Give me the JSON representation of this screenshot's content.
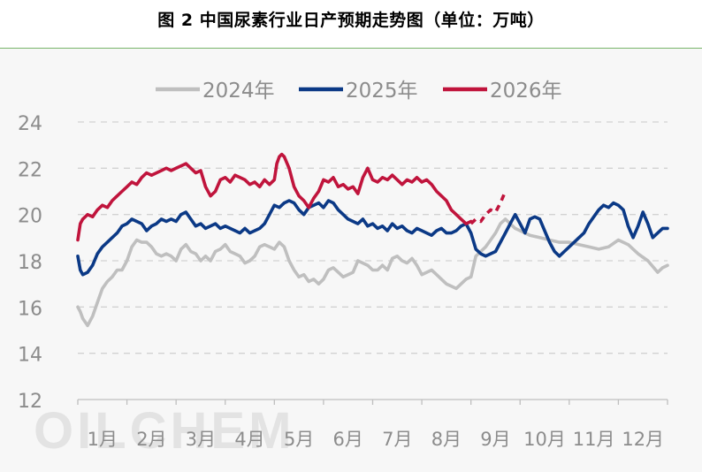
{
  "chart_data": {
    "type": "line",
    "title": "图 2 中国尿素行业日产预期走势图（单位：万吨）",
    "watermark": "OILCHEM",
    "xlabel": "",
    "ylabel": "",
    "ylim": [
      12,
      24
    ],
    "yticks": [
      "24",
      "22",
      "20",
      "18",
      "16",
      "14",
      "12"
    ],
    "xticks": [
      "1月",
      "2月",
      "3月",
      "4月",
      "5月",
      "6月",
      "7月",
      "8月",
      "9月",
      "10月",
      "11月",
      "12月"
    ],
    "grid": true,
    "legend_position": "top",
    "series": [
      {
        "name": "2024年",
        "color": "#bfbfbf",
        "x": [
          1.0,
          1.05,
          1.1,
          1.2,
          1.3,
          1.4,
          1.5,
          1.6,
          1.7,
          1.8,
          1.9,
          2.0,
          2.1,
          2.2,
          2.3,
          2.4,
          2.5,
          2.6,
          2.7,
          2.8,
          2.9,
          3.0,
          3.1,
          3.2,
          3.3,
          3.4,
          3.5,
          3.6,
          3.7,
          3.8,
          3.9,
          4.0,
          4.1,
          4.2,
          4.3,
          4.4,
          4.5,
          4.6,
          4.7,
          4.8,
          4.9,
          5.0,
          5.1,
          5.2,
          5.3,
          5.4,
          5.5,
          5.6,
          5.7,
          5.8,
          5.9,
          6.0,
          6.1,
          6.2,
          6.3,
          6.4,
          6.5,
          6.6,
          6.7,
          6.8,
          6.9,
          7.0,
          7.1,
          7.2,
          7.3,
          7.4,
          7.5,
          7.6,
          7.7,
          7.8,
          7.9,
          8.0,
          8.1,
          8.2,
          8.3,
          8.4,
          8.5,
          8.6,
          8.7,
          8.8,
          8.9,
          9.0,
          9.1,
          9.2,
          9.3,
          9.4,
          9.5,
          9.6,
          9.7,
          9.8,
          9.9,
          10.0,
          10.2,
          10.4,
          10.6,
          10.8,
          11.0,
          11.2,
          11.4,
          11.6,
          11.8,
          12.0,
          12.2,
          12.4,
          12.6,
          12.8,
          12.9,
          13.0
        ],
        "values": [
          16.0,
          15.8,
          15.5,
          15.2,
          15.6,
          16.2,
          16.8,
          17.1,
          17.3,
          17.6,
          17.6,
          18.0,
          18.6,
          18.9,
          18.8,
          18.8,
          18.6,
          18.3,
          18.2,
          18.3,
          18.2,
          18.0,
          18.5,
          18.7,
          18.4,
          18.3,
          18.0,
          18.2,
          18.0,
          18.4,
          18.5,
          18.7,
          18.4,
          18.3,
          18.2,
          17.9,
          18.0,
          18.2,
          18.6,
          18.7,
          18.6,
          18.5,
          18.8,
          18.6,
          18.0,
          17.6,
          17.3,
          17.4,
          17.1,
          17.2,
          17.0,
          17.2,
          17.6,
          17.7,
          17.5,
          17.3,
          17.4,
          17.5,
          18.0,
          17.9,
          17.8,
          17.6,
          17.6,
          17.8,
          17.6,
          18.1,
          18.2,
          18.0,
          17.9,
          18.1,
          17.8,
          17.4,
          17.5,
          17.6,
          17.4,
          17.2,
          17.0,
          16.9,
          16.8,
          17.0,
          17.2,
          17.3,
          18.2,
          18.4,
          18.6,
          18.9,
          19.2,
          19.6,
          19.8,
          19.6,
          19.4,
          19.3,
          19.1,
          19.0,
          18.9,
          18.8,
          18.8,
          18.7,
          18.6,
          18.5,
          18.6,
          18.9,
          18.7,
          18.3,
          18.0,
          17.5,
          17.7,
          17.8
        ]
      },
      {
        "name": "2025年",
        "color": "#0b3986",
        "x": [
          1.0,
          1.05,
          1.1,
          1.2,
          1.3,
          1.4,
          1.5,
          1.6,
          1.7,
          1.8,
          1.9,
          2.0,
          2.1,
          2.2,
          2.3,
          2.4,
          2.5,
          2.6,
          2.7,
          2.8,
          2.9,
          3.0,
          3.1,
          3.2,
          3.3,
          3.4,
          3.5,
          3.6,
          3.7,
          3.8,
          3.9,
          4.0,
          4.1,
          4.2,
          4.3,
          4.4,
          4.5,
          4.6,
          4.7,
          4.8,
          4.9,
          5.0,
          5.1,
          5.2,
          5.3,
          5.4,
          5.5,
          5.6,
          5.7,
          5.8,
          5.9,
          6.0,
          6.1,
          6.2,
          6.3,
          6.4,
          6.5,
          6.6,
          6.7,
          6.8,
          6.9,
          7.0,
          7.1,
          7.2,
          7.3,
          7.4,
          7.5,
          7.6,
          7.7,
          7.8,
          7.9,
          8.0,
          8.1,
          8.2,
          8.3,
          8.4,
          8.5,
          8.6,
          8.7,
          8.8,
          8.9,
          9.0,
          9.1,
          9.2,
          9.3,
          9.4,
          9.5,
          9.6,
          9.7,
          9.8,
          9.9,
          10.0,
          10.1,
          10.2,
          10.3,
          10.4,
          10.5,
          10.6,
          10.7,
          10.8,
          10.9,
          11.0,
          11.1,
          11.2,
          11.3,
          11.4,
          11.5,
          11.6,
          11.7,
          11.8,
          11.9,
          12.0,
          12.1,
          12.2,
          12.3,
          12.4,
          12.5,
          12.6,
          12.7,
          12.8,
          12.9,
          13.0
        ],
        "values": [
          18.2,
          17.6,
          17.4,
          17.5,
          17.8,
          18.3,
          18.6,
          18.8,
          19.0,
          19.2,
          19.5,
          19.6,
          19.8,
          19.7,
          19.6,
          19.3,
          19.5,
          19.6,
          19.8,
          19.7,
          19.8,
          19.7,
          20.0,
          20.1,
          19.8,
          19.5,
          19.6,
          19.4,
          19.5,
          19.6,
          19.4,
          19.5,
          19.4,
          19.3,
          19.2,
          19.4,
          19.2,
          19.3,
          19.4,
          19.6,
          20.0,
          20.4,
          20.3,
          20.5,
          20.6,
          20.5,
          20.2,
          20.0,
          20.3,
          20.4,
          20.5,
          20.3,
          20.6,
          20.5,
          20.2,
          20.0,
          19.8,
          19.7,
          19.6,
          19.8,
          19.5,
          19.6,
          19.4,
          19.5,
          19.3,
          19.6,
          19.4,
          19.5,
          19.3,
          19.2,
          19.4,
          19.3,
          19.2,
          19.1,
          19.3,
          19.4,
          19.2,
          19.2,
          19.3,
          19.5,
          19.6,
          19.2,
          18.5,
          18.3,
          18.2,
          18.3,
          18.4,
          18.8,
          19.2,
          19.6,
          20.0,
          19.6,
          19.2,
          19.8,
          19.9,
          19.8,
          19.3,
          18.8,
          18.4,
          18.2,
          18.4,
          18.6,
          18.8,
          19.0,
          19.2,
          19.6,
          19.9,
          20.2,
          20.4,
          20.3,
          20.5,
          20.4,
          20.2,
          19.5,
          19.0,
          19.5,
          20.1,
          19.6,
          19.0,
          19.2,
          19.4,
          19.4
        ]
      },
      {
        "name": "2026年",
        "color": "#c0143c",
        "x": [
          1.0,
          1.05,
          1.1,
          1.2,
          1.3,
          1.4,
          1.5,
          1.6,
          1.7,
          1.8,
          1.9,
          2.0,
          2.1,
          2.2,
          2.3,
          2.4,
          2.5,
          2.6,
          2.7,
          2.8,
          2.9,
          3.0,
          3.1,
          3.2,
          3.3,
          3.4,
          3.5,
          3.6,
          3.7,
          3.8,
          3.9,
          4.0,
          4.1,
          4.2,
          4.3,
          4.4,
          4.5,
          4.6,
          4.7,
          4.8,
          4.9,
          5.0,
          5.05,
          5.1,
          5.15,
          5.2,
          5.3,
          5.4,
          5.5,
          5.6,
          5.7,
          5.8,
          5.9,
          6.0,
          6.1,
          6.2,
          6.3,
          6.4,
          6.5,
          6.6,
          6.7,
          6.8,
          6.9,
          7.0,
          7.1,
          7.2,
          7.3,
          7.4,
          7.5,
          7.6,
          7.7,
          7.8,
          7.9,
          8.0,
          8.1,
          8.2,
          8.3,
          8.4,
          8.5,
          8.6,
          8.7,
          8.8,
          8.9,
          9.0
        ],
        "values": [
          18.9,
          19.6,
          19.8,
          20.0,
          19.9,
          20.2,
          20.4,
          20.3,
          20.6,
          20.8,
          21.0,
          21.2,
          21.4,
          21.3,
          21.6,
          21.8,
          21.7,
          21.8,
          21.9,
          22.0,
          21.9,
          22.0,
          22.1,
          22.2,
          22.0,
          21.8,
          21.9,
          21.2,
          20.8,
          21.0,
          21.5,
          21.6,
          21.4,
          21.7,
          21.6,
          21.5,
          21.3,
          21.4,
          21.2,
          21.5,
          21.3,
          21.5,
          22.2,
          22.5,
          22.6,
          22.5,
          22.0,
          21.2,
          20.8,
          20.6,
          20.3,
          20.7,
          21.0,
          21.5,
          21.4,
          21.6,
          21.2,
          21.3,
          21.1,
          21.2,
          20.9,
          21.6,
          22.0,
          21.5,
          21.4,
          21.6,
          21.5,
          21.7,
          21.5,
          21.3,
          21.5,
          21.4,
          21.6,
          21.4,
          21.5,
          21.3,
          21.0,
          20.8,
          20.6,
          20.2,
          20.0,
          19.8,
          19.6,
          19.7
        ]
      },
      {
        "name": "2026年 (预期)",
        "color": "#c0143c",
        "dashed": true,
        "x": [
          9.0,
          9.1,
          9.2,
          9.3,
          9.4,
          9.5,
          9.6,
          9.7
        ],
        "values": [
          19.6,
          19.8,
          19.7,
          20.0,
          20.2,
          20.1,
          20.5,
          21.0
        ]
      }
    ]
  }
}
